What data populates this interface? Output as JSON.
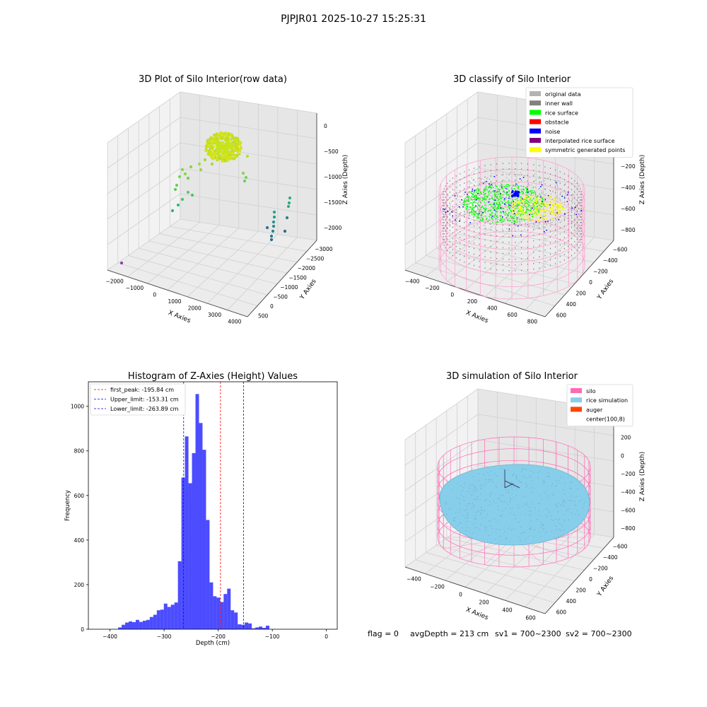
{
  "figure": {
    "suptitle": "PJPJR01 2025-10-27 15:25:31",
    "footer": {
      "flag": "flag = 0",
      "avg_depth": "avgDepth = 213 cm",
      "sv1": "sv1 = 700~2300",
      "sv2": "sv2 = 700~2300"
    }
  },
  "chart_data": [
    {
      "type": "scatter",
      "title": "3D Plot of Silo Interior(row data)",
      "xlabel": "X Axies",
      "ylabel": "Y Axies",
      "zlabel": "Z Axies (Depth)",
      "x_ticks": [
        "−2000",
        "−1000",
        "0",
        "1000",
        "2000",
        "3000",
        "4000"
      ],
      "y_ticks": [
        "500",
        "0",
        "−500",
        "−1000",
        "−1500",
        "−2000",
        "−2500",
        "−3000"
      ],
      "z_ticks": [
        "0",
        "−500",
        "−1000",
        "−1500",
        "−2000"
      ],
      "grid": true,
      "colormap": "viridis-by-depth"
    },
    {
      "type": "scatter",
      "title": "3D classify of Silo Interior",
      "xlabel": "X Axies",
      "ylabel": "Y Axies",
      "zlabel": "Z Axies (Depth)",
      "x_ticks": [
        "−400",
        "−200",
        "0",
        "200",
        "400",
        "600",
        "800"
      ],
      "y_ticks": [
        "600",
        "400",
        "200",
        "0",
        "−200",
        "−400",
        "−600"
      ],
      "z_ticks": [
        "200",
        "0",
        "−200",
        "−400",
        "−600",
        "−800"
      ],
      "legend_position": "top-right",
      "legend": [
        {
          "label": "original data",
          "color": "#b3b3b3"
        },
        {
          "label": "inner wall",
          "color": "#808080"
        },
        {
          "label": "rice surface",
          "color": "#00ff00"
        },
        {
          "label": "obstacle",
          "color": "#ff0000"
        },
        {
          "label": "noise",
          "color": "#0000ff"
        },
        {
          "label": "interpolated rice surface",
          "color": "#800080"
        },
        {
          "label": "symmetric generated points",
          "color": "#ffff00"
        }
      ],
      "grid": true
    },
    {
      "type": "bar",
      "title": "Histogram of Z-Axies (Height) Values",
      "xlabel": "Depth (cm)",
      "ylabel": "Frequency",
      "xlim": [
        -440,
        20
      ],
      "ylim": [
        0,
        1110
      ],
      "x_ticks": [
        -400,
        -300,
        -200,
        -100,
        0
      ],
      "x_tick_labels": [
        "−400",
        "−300",
        "−200",
        "−100",
        "0"
      ],
      "y_ticks": [
        0,
        200,
        400,
        600,
        800,
        1000
      ],
      "bar_color": "#0000ff",
      "bin_start": -385,
      "bin_width": 6.5,
      "values": [
        8,
        20,
        30,
        35,
        32,
        42,
        33,
        38,
        42,
        55,
        65,
        85,
        88,
        115,
        100,
        110,
        120,
        305,
        680,
        865,
        655,
        790,
        1055,
        925,
        805,
        490,
        210,
        148,
        142,
        122,
        158,
        182,
        85,
        75,
        22,
        20,
        30,
        26,
        4,
        8,
        12,
        6,
        16
      ],
      "vlines": [
        {
          "label": "first_peak: -195.84 cm",
          "x": -195.84,
          "color": "#ff0000"
        },
        {
          "label": "Upper_limit: -153.31 cm",
          "x": -153.31,
          "color": "#0000ff"
        },
        {
          "label": "Lower_limit: -263.89 cm",
          "x": -263.89,
          "color": "#0000ff"
        }
      ],
      "legend_position": "top-left",
      "grid": false
    },
    {
      "type": "scatter",
      "title": "3D simulation of Silo Interior",
      "xlabel": "X Axies",
      "ylabel": "Y Axies",
      "zlabel": "Z Axies (Depth)",
      "x_ticks": [
        "−400",
        "−200",
        "0",
        "200",
        "400",
        "600"
      ],
      "y_ticks": [
        "600",
        "400",
        "200",
        "0",
        "−200",
        "−400",
        "−600"
      ],
      "z_ticks": [
        "400",
        "200",
        "0",
        "−200",
        "−400",
        "−600",
        "−800"
      ],
      "legend_position": "top-right",
      "legend": [
        {
          "label": "silo",
          "color": "#ff69b4"
        },
        {
          "label": "rice simulation",
          "color": "#87ceeb"
        },
        {
          "label": "auger",
          "color": "#ff4500"
        },
        {
          "label": "center(100,8)",
          "color": "#ffffff"
        }
      ],
      "grid": true
    }
  ]
}
